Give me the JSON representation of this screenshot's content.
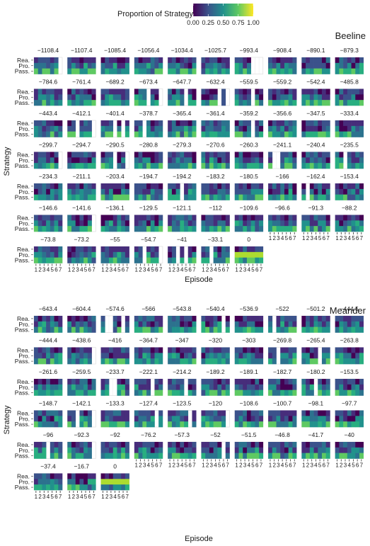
{
  "legend": {
    "title": "Proportion of Strategy",
    "ticks": [
      "0.00",
      "0.25",
      "0.50",
      "0.75",
      "1.00"
    ],
    "colors": [
      "#440154",
      "#3b528b",
      "#21918c",
      "#5ec962",
      "#fde725"
    ]
  },
  "strategy_labels": [
    "Rea.",
    "Pro.",
    "Pass."
  ],
  "episode_ticks": [
    "1",
    "2",
    "3",
    "4",
    "5",
    "6",
    "7"
  ],
  "chart_data": [
    {
      "type": "heatmap",
      "title": "Beeline",
      "xlabel": "Episode",
      "ylabel": "Strategy",
      "categories_x": [
        "1",
        "2",
        "3",
        "4",
        "5",
        "6",
        "7"
      ],
      "categories_y": [
        "Rea.",
        "Pro.",
        "Pass."
      ],
      "value_range": [
        0,
        1
      ],
      "panels": [
        {
          "label": "−1108.4"
        },
        {
          "label": "−1107.4"
        },
        {
          "label": "−1085.4"
        },
        {
          "label": "−1056.4"
        },
        {
          "label": "−1034.4"
        },
        {
          "label": "−1025.7"
        },
        {
          "label": "−993.4"
        },
        {
          "label": "−908.4"
        },
        {
          "label": "−890.1"
        },
        {
          "label": "−879.3"
        },
        {
          "label": "−784.6"
        },
        {
          "label": "−761.4"
        },
        {
          "label": "−689.2"
        },
        {
          "label": "−673.4"
        },
        {
          "label": "−647.7"
        },
        {
          "label": "−632.4"
        },
        {
          "label": "−559.5"
        },
        {
          "label": "−559.2"
        },
        {
          "label": "−542.4"
        },
        {
          "label": "−485.8"
        },
        {
          "label": "−443.4"
        },
        {
          "label": "−412.1"
        },
        {
          "label": "−401.4"
        },
        {
          "label": "−378.7"
        },
        {
          "label": "−365.4"
        },
        {
          "label": "−361.4"
        },
        {
          "label": "−359.2"
        },
        {
          "label": "−356.6"
        },
        {
          "label": "−347.5"
        },
        {
          "label": "−333.4"
        },
        {
          "label": "−299.7"
        },
        {
          "label": "−294.7"
        },
        {
          "label": "−290.5"
        },
        {
          "label": "−280.8"
        },
        {
          "label": "−279.3"
        },
        {
          "label": "−270.6"
        },
        {
          "label": "−260.3"
        },
        {
          "label": "−241.1"
        },
        {
          "label": "−240.4"
        },
        {
          "label": "−235.5"
        },
        {
          "label": "−234.3"
        },
        {
          "label": "−211.1"
        },
        {
          "label": "−203.4"
        },
        {
          "label": "−194.7"
        },
        {
          "label": "−194.2"
        },
        {
          "label": "−183.2"
        },
        {
          "label": "−180.5"
        },
        {
          "label": "−166"
        },
        {
          "label": "−162.4"
        },
        {
          "label": "−153.4"
        },
        {
          "label": "−146.6"
        },
        {
          "label": "−141.6"
        },
        {
          "label": "−136.1"
        },
        {
          "label": "−129.5"
        },
        {
          "label": "−121.1"
        },
        {
          "label": "−112"
        },
        {
          "label": "−109.6"
        },
        {
          "label": "−96.6"
        },
        {
          "label": "−91.3"
        },
        {
          "label": "−88.2"
        },
        {
          "label": "−73.8"
        },
        {
          "label": "−73.2"
        },
        {
          "label": "−55"
        },
        {
          "label": "−54.7"
        },
        {
          "label": "−41"
        },
        {
          "label": "−33.1"
        },
        {
          "label": "0"
        }
      ]
    },
    {
      "type": "heatmap",
      "title": "Meander",
      "xlabel": "Episode",
      "ylabel": "Strategy",
      "categories_x": [
        "1",
        "2",
        "3",
        "4",
        "5",
        "6",
        "7"
      ],
      "categories_y": [
        "Rea.",
        "Pro.",
        "Pass."
      ],
      "value_range": [
        0,
        1
      ],
      "panels": [
        {
          "label": "−643.4"
        },
        {
          "label": "−604.4"
        },
        {
          "label": "−574.6"
        },
        {
          "label": "−566"
        },
        {
          "label": "−543.8"
        },
        {
          "label": "−540.4"
        },
        {
          "label": "−536.9"
        },
        {
          "label": "−522"
        },
        {
          "label": "−501.2"
        },
        {
          "label": "−444.5"
        },
        {
          "label": "−444.4"
        },
        {
          "label": "−438.6"
        },
        {
          "label": "−416"
        },
        {
          "label": "−364.7"
        },
        {
          "label": "−347"
        },
        {
          "label": "−320"
        },
        {
          "label": "−303"
        },
        {
          "label": "−269.8"
        },
        {
          "label": "−265.4"
        },
        {
          "label": "−263.8"
        },
        {
          "label": "−261.6"
        },
        {
          "label": "−259.5"
        },
        {
          "label": "−233.7"
        },
        {
          "label": "−222.1"
        },
        {
          "label": "−214.2"
        },
        {
          "label": "−189.2"
        },
        {
          "label": "−189.1"
        },
        {
          "label": "−182.7"
        },
        {
          "label": "−180.2"
        },
        {
          "label": "−153.5"
        },
        {
          "label": "−148.7"
        },
        {
          "label": "−142.1"
        },
        {
          "label": "−133.3"
        },
        {
          "label": "−127.4"
        },
        {
          "label": "−123.5"
        },
        {
          "label": "−120"
        },
        {
          "label": "−108.6"
        },
        {
          "label": "−100.7"
        },
        {
          "label": "−98.1"
        },
        {
          "label": "−97.7"
        },
        {
          "label": "−96"
        },
        {
          "label": "−92.3"
        },
        {
          "label": "−92"
        },
        {
          "label": "−76.2"
        },
        {
          "label": "−57.3"
        },
        {
          "label": "−52"
        },
        {
          "label": "−51.5"
        },
        {
          "label": "−46.8"
        },
        {
          "label": "−41.7"
        },
        {
          "label": "−40"
        },
        {
          "label": "−37.4"
        },
        {
          "label": "−16.7"
        },
        {
          "label": "0"
        }
      ]
    }
  ]
}
